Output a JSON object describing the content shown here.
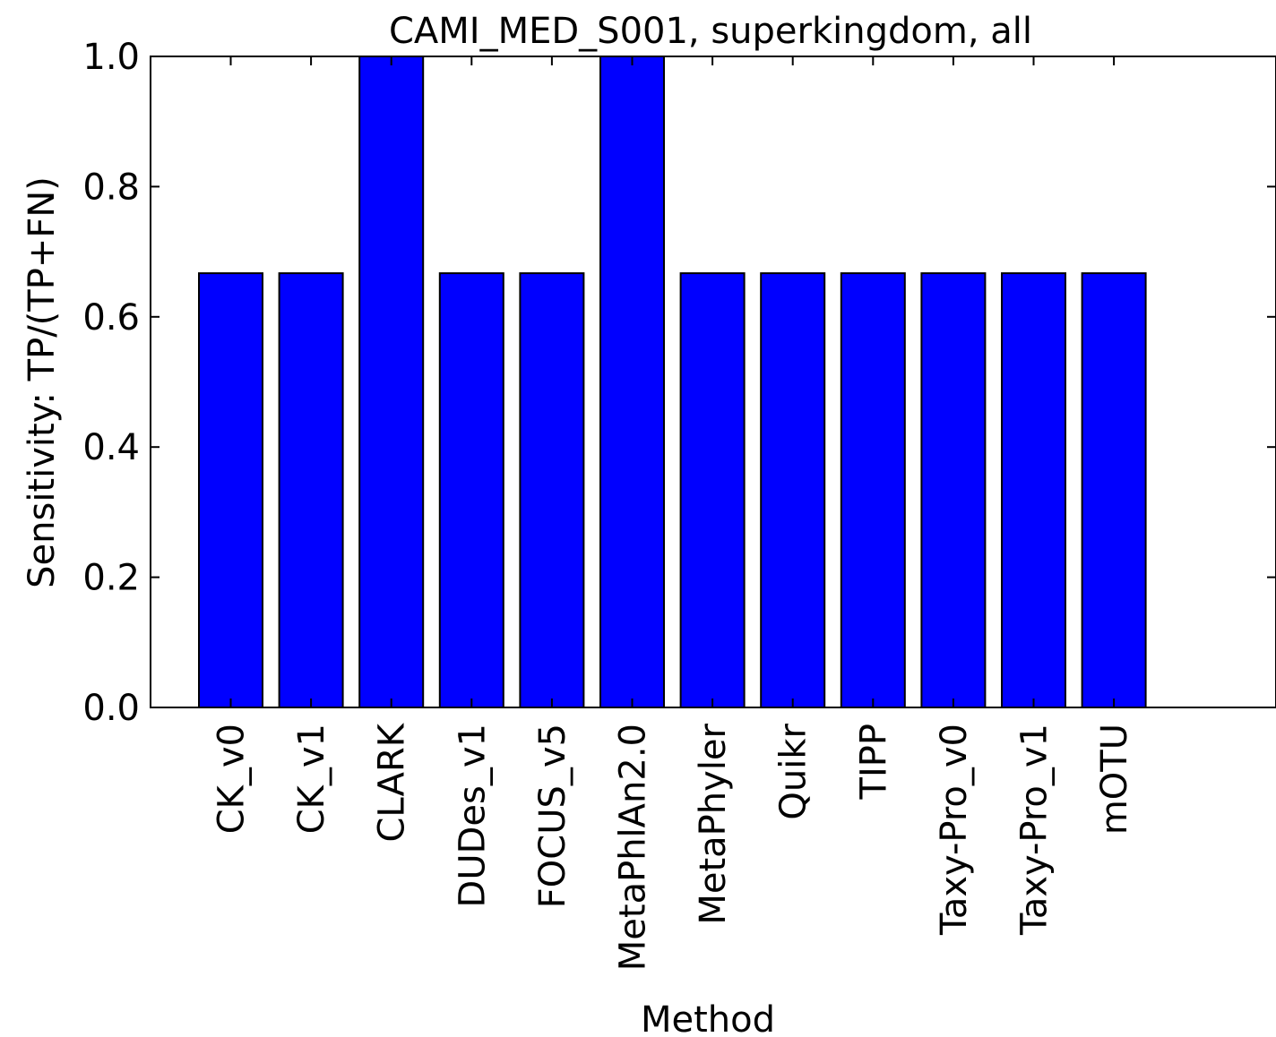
{
  "chart_data": {
    "type": "bar",
    "title": "CAMI_MED_S001, superkingdom, all",
    "xlabel": "Method",
    "ylabel": "Sensitivity: TP/(TP+FN)",
    "categories": [
      "CK_v0",
      "CK_v1",
      "CLARK",
      "DUDes_v1",
      "FOCUS_v5",
      "MetaPhlAn2.0",
      "MetaPhyler",
      "Quikr",
      "TIPP",
      "Taxy-Pro_v0",
      "Taxy-Pro_v1",
      "mOTU"
    ],
    "values": [
      0.667,
      0.667,
      1.0,
      0.667,
      0.667,
      1.0,
      0.667,
      0.667,
      0.667,
      0.667,
      0.667,
      0.667
    ],
    "ylim": [
      0.0,
      1.0
    ],
    "yticks": [
      "0.0",
      "0.2",
      "0.4",
      "0.6",
      "0.8",
      "1.0"
    ],
    "bar_color": "#0000ff",
    "edge_color": "#000000",
    "grid": false
  }
}
